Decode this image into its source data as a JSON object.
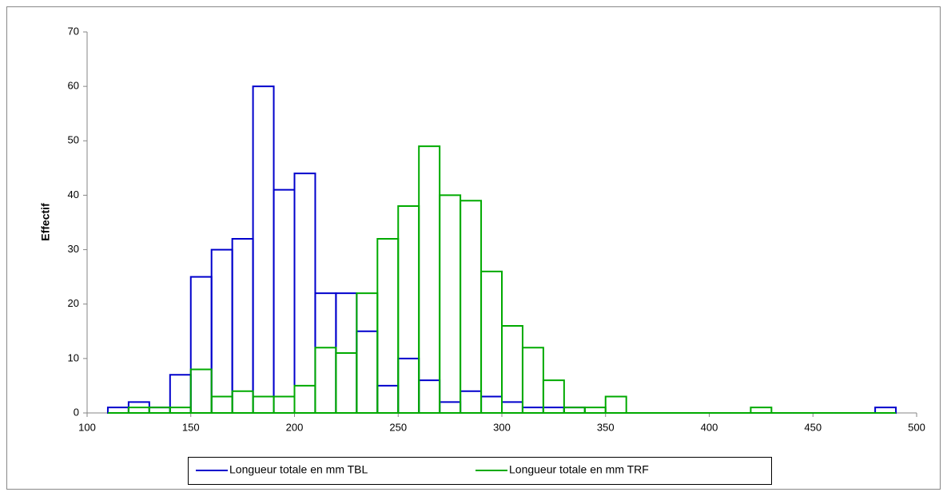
{
  "chart_data": {
    "type": "histogram",
    "ylabel": "Effectif",
    "bins": [
      110,
      120,
      130,
      140,
      150,
      160,
      170,
      180,
      190,
      200,
      210,
      220,
      230,
      240,
      250,
      260,
      270,
      280,
      290,
      300,
      310,
      320,
      330,
      340,
      350,
      360,
      370,
      380,
      390,
      400,
      410,
      420,
      430,
      440,
      450,
      460,
      470,
      480,
      490
    ],
    "series": [
      {
        "name": "Longueur totale en mm TBL",
        "color": "#0000cc",
        "values": [
          1,
          2,
          1,
          7,
          25,
          30,
          32,
          60,
          41,
          44,
          22,
          22,
          15,
          5,
          10,
          6,
          2,
          4,
          3,
          2,
          1,
          1,
          1,
          0,
          0,
          0,
          0,
          0,
          0,
          0,
          0,
          0,
          0,
          0,
          0,
          0,
          0,
          1
        ]
      },
      {
        "name": "Longueur totale en mm TRF",
        "color": "#00aa00",
        "values": [
          0,
          1,
          1,
          1,
          8,
          3,
          4,
          3,
          3,
          5,
          12,
          11,
          22,
          32,
          38,
          49,
          40,
          39,
          26,
          16,
          12,
          6,
          1,
          1,
          3,
          0,
          0,
          0,
          0,
          0,
          0,
          1,
          0,
          0,
          0,
          0,
          0,
          0
        ]
      }
    ],
    "xlim": [
      100,
      500
    ],
    "xticks": [
      100,
      150,
      200,
      250,
      300,
      350,
      400,
      450,
      500
    ],
    "ylim": [
      0,
      70
    ],
    "yticks": [
      0,
      10,
      20,
      30,
      40,
      50,
      60,
      70
    ],
    "legend": "bottom"
  }
}
